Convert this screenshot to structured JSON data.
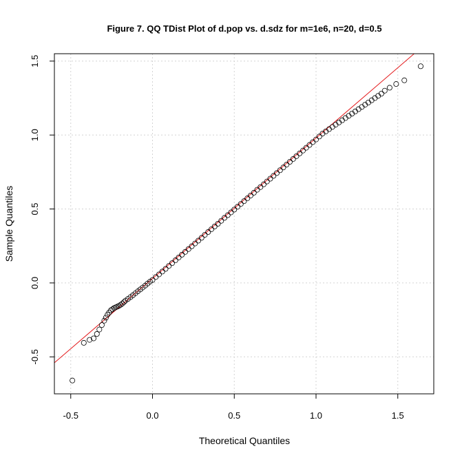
{
  "chart_data": {
    "type": "scatter",
    "title": "Figure 7. QQ TDist Plot of d.pop vs. d.sdz for m=1e6, n=20, d=0.5",
    "xlabel": "Theoretical Quantiles",
    "ylabel": "Sample Quantiles",
    "xlim": [
      -0.6,
      1.72
    ],
    "ylim": [
      -0.75,
      1.55
    ],
    "xticks": [
      -0.5,
      0.0,
      0.5,
      1.0,
      1.5
    ],
    "xtick_labels": [
      "-0.5",
      "0.0",
      "0.5",
      "1.0",
      "1.5"
    ],
    "yticks": [
      -0.5,
      0.0,
      0.5,
      1.0,
      1.5
    ],
    "ytick_labels": [
      "-0.5",
      "0.0",
      "0.5",
      "1.0",
      "1.5"
    ],
    "grid": true,
    "reference_line": {
      "intercept": 0.03,
      "slope": 0.95,
      "color": "#e41a1c"
    },
    "point_color": "#000000",
    "series": [
      {
        "x": [
          -0.49,
          -0.42,
          -0.385,
          -0.36,
          -0.34,
          -0.325,
          -0.31,
          -0.295,
          -0.285,
          -0.275,
          -0.265,
          -0.255,
          -0.245,
          -0.235,
          -0.225,
          -0.215,
          -0.205,
          -0.195,
          -0.185,
          -0.175,
          -0.165,
          -0.15,
          -0.135,
          -0.12,
          -0.105,
          -0.09,
          -0.075,
          -0.06,
          -0.045,
          -0.03,
          -0.015,
          0.0,
          0.02,
          0.04,
          0.06,
          0.08,
          0.1,
          0.12,
          0.14,
          0.16,
          0.18,
          0.2,
          0.22,
          0.24,
          0.26,
          0.28,
          0.3,
          0.32,
          0.34,
          0.36,
          0.38,
          0.4,
          0.42,
          0.44,
          0.46,
          0.48,
          0.5,
          0.52,
          0.54,
          0.56,
          0.58,
          0.6,
          0.62,
          0.64,
          0.66,
          0.68,
          0.7,
          0.72,
          0.74,
          0.76,
          0.78,
          0.8,
          0.82,
          0.84,
          0.86,
          0.88,
          0.9,
          0.92,
          0.94,
          0.96,
          0.98,
          1.0,
          1.02,
          1.04,
          1.06,
          1.08,
          1.1,
          1.12,
          1.14,
          1.16,
          1.18,
          1.2,
          1.22,
          1.24,
          1.26,
          1.28,
          1.3,
          1.32,
          1.34,
          1.36,
          1.38,
          1.4,
          1.42,
          1.45,
          1.49,
          1.54,
          1.64
        ],
        "y": [
          -0.66,
          -0.405,
          -0.385,
          -0.375,
          -0.345,
          -0.315,
          -0.285,
          -0.255,
          -0.235,
          -0.215,
          -0.2,
          -0.185,
          -0.178,
          -0.17,
          -0.165,
          -0.16,
          -0.155,
          -0.148,
          -0.14,
          -0.13,
          -0.12,
          -0.108,
          -0.096,
          -0.083,
          -0.07,
          -0.057,
          -0.044,
          -0.031,
          -0.018,
          -0.004,
          0.009,
          0.02,
          0.04,
          0.058,
          0.077,
          0.095,
          0.115,
          0.134,
          0.153,
          0.172,
          0.191,
          0.21,
          0.229,
          0.248,
          0.267,
          0.286,
          0.305,
          0.325,
          0.344,
          0.363,
          0.382,
          0.4,
          0.42,
          0.44,
          0.458,
          0.477,
          0.496,
          0.515,
          0.534,
          0.553,
          0.572,
          0.591,
          0.61,
          0.63,
          0.648,
          0.667,
          0.686,
          0.705,
          0.724,
          0.743,
          0.762,
          0.781,
          0.8,
          0.819,
          0.838,
          0.857,
          0.876,
          0.895,
          0.914,
          0.933,
          0.952,
          0.97,
          0.99,
          1.01,
          1.025,
          1.04,
          1.055,
          1.07,
          1.085,
          1.1,
          1.115,
          1.13,
          1.145,
          1.16,
          1.175,
          1.19,
          1.205,
          1.22,
          1.235,
          1.25,
          1.265,
          1.28,
          1.3,
          1.32,
          1.345,
          1.37,
          1.465
        ]
      }
    ]
  }
}
